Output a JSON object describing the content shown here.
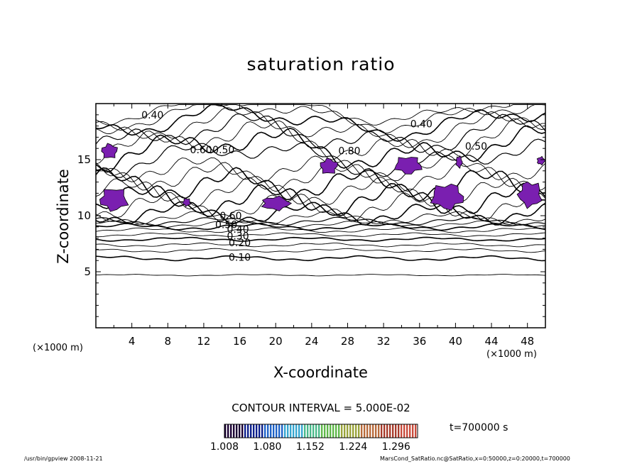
{
  "footer": {
    "left": "/usr/bin/gpview   2008-11-21",
    "right": "MarsCond_SatRatio.nc@SatRatio,x=0:50000,z=0:20000,t=700000"
  },
  "chart_data": {
    "type": "contour",
    "title": "saturation ratio",
    "xlabel": "X-coordinate",
    "ylabel": "Z-coordinate",
    "x_unit": "(×1000 m)",
    "y_unit": "(×1000 m)",
    "xlim": [
      0,
      50
    ],
    "ylim": [
      0,
      20
    ],
    "x_ticks": [
      "4",
      "8",
      "12",
      "16",
      "20",
      "24",
      "28",
      "32",
      "36",
      "40",
      "44",
      "48"
    ],
    "y_ticks": [
      "5",
      "10",
      "15"
    ],
    "contour_interval_text": "CONTOUR INTERVAL = 5.000E-02",
    "time_text": "t=700000 s",
    "colorbar": {
      "min": 1.008,
      "max": 1.332,
      "tick_labels": [
        "1.008",
        "1.080",
        "1.152",
        "1.224",
        "1.296"
      ],
      "colors": [
        "#1a0033",
        "#0b1f8c",
        "#1e63c8",
        "#35a6d0",
        "#49b98a",
        "#5fb84a",
        "#9aa33a",
        "#b86a3a",
        "#a83a2a",
        "#c94a3a"
      ]
    },
    "contour_labels": [
      {
        "text": "0.40",
        "x": 6.3,
        "z": 19.0
      },
      {
        "text": "0.40",
        "x": 36.2,
        "z": 18.2
      },
      {
        "text": "0.60",
        "x": 11.7,
        "z": 15.9
      },
      {
        "text": "0.50",
        "x": 14.2,
        "z": 15.9
      },
      {
        "text": "0.80",
        "x": 28.2,
        "z": 15.8
      },
      {
        "text": "0.50",
        "x": 42.3,
        "z": 16.2
      },
      {
        "text": "0.60",
        "x": 15.0,
        "z": 10.0
      },
      {
        "text": "0.50",
        "x": 14.5,
        "z": 9.2
      },
      {
        "text": "0.40",
        "x": 15.8,
        "z": 8.8
      },
      {
        "text": "0.30",
        "x": 15.8,
        "z": 8.2
      },
      {
        "text": "0.20",
        "x": 16.0,
        "z": 7.6
      },
      {
        "text": "0.10",
        "x": 16.0,
        "z": 6.3
      }
    ],
    "supersaturated_regions": [
      {
        "x": [
          0.5,
          2.5
        ],
        "z": [
          15.0,
          16.5
        ]
      },
      {
        "x": [
          0.2,
          3.8
        ],
        "z": [
          10.3,
          12.6
        ]
      },
      {
        "x": [
          9.6,
          10.6
        ],
        "z": [
          10.8,
          11.6
        ]
      },
      {
        "x": [
          18.2,
          21.8
        ],
        "z": [
          10.4,
          11.8
        ]
      },
      {
        "x": [
          24.8,
          27.0
        ],
        "z": [
          13.6,
          15.2
        ]
      },
      {
        "x": [
          33.0,
          36.5
        ],
        "z": [
          13.6,
          15.4
        ]
      },
      {
        "x": [
          37.0,
          41.2
        ],
        "z": [
          10.4,
          13.0
        ]
      },
      {
        "x": [
          40.0,
          40.8
        ],
        "z": [
          14.2,
          15.4
        ]
      },
      {
        "x": [
          46.8,
          49.8
        ],
        "z": [
          10.6,
          13.2
        ]
      },
      {
        "x": [
          49.0,
          50.0
        ],
        "z": [
          14.5,
          15.3
        ]
      }
    ]
  }
}
